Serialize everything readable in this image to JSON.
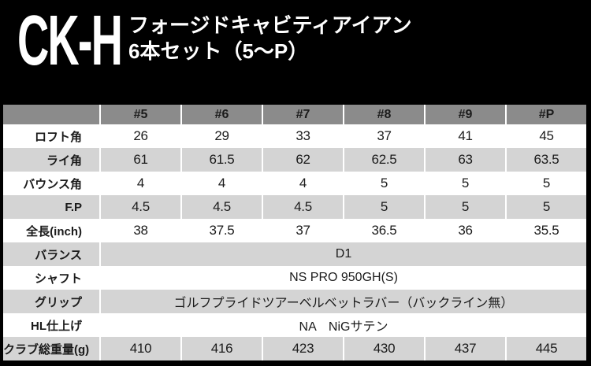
{
  "title": {
    "brand": "CK-H",
    "subtitle_line1": "フォージドキャビティアイアン",
    "subtitle_line2": "6本セット（5～P）"
  },
  "table": {
    "columns": [
      "#5",
      "#6",
      "#7",
      "#8",
      "#9",
      "#P"
    ],
    "rows": [
      {
        "label": "ロフト角",
        "values": [
          "26",
          "29",
          "33",
          "37",
          "41",
          "45"
        ]
      },
      {
        "label": "ライ角",
        "values": [
          "61",
          "61.5",
          "62",
          "62.5",
          "63",
          "63.5"
        ]
      },
      {
        "label": "バウンス角",
        "values": [
          "4",
          "4",
          "4",
          "5",
          "5",
          "5"
        ]
      },
      {
        "label": "F.P",
        "values": [
          "4.5",
          "4.5",
          "4.5",
          "5",
          "5",
          "5"
        ]
      },
      {
        "label": "全長(inch)",
        "values": [
          "38",
          "37.5",
          "37",
          "36.5",
          "36",
          "35.5"
        ]
      },
      {
        "label": "バランス",
        "span": "D1"
      },
      {
        "label": "シャフト",
        "span": "NS PRO 950GH(S)"
      },
      {
        "label": "グリップ",
        "span": "ゴルフプライドツアーベルベットラバー（バックライン無）"
      },
      {
        "label": "HL仕上げ",
        "span": "NA　NiGサテン"
      },
      {
        "label": "クラブ総重量(g)",
        "values": [
          "410",
          "416",
          "423",
          "430",
          "437",
          "445"
        ]
      }
    ]
  },
  "colors": {
    "page_background": "#000000",
    "header_row_gray": "#8b8b8b",
    "row_gray": "#d4d4d4",
    "row_white": "#ffffff",
    "table_text": "#1b1b1b",
    "title_text": "#ffffff"
  }
}
